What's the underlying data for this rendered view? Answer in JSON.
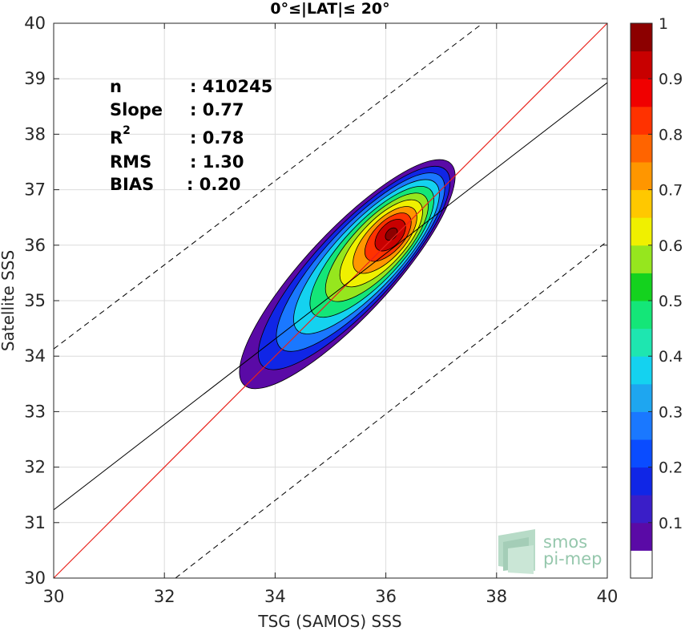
{
  "chart_data": {
    "type": "heatmap",
    "title": "0°≤|LAT|≤ 20°",
    "xlabel": "TSG (SAMOS) SSS",
    "ylabel": "Satellite SSS",
    "xlim": [
      30,
      40
    ],
    "ylim": [
      30,
      40
    ],
    "x_ticks": [
      30,
      32,
      34,
      36,
      38,
      40
    ],
    "y_ticks": [
      30,
      31,
      32,
      33,
      34,
      35,
      36,
      37,
      38,
      39,
      40
    ],
    "grid": true,
    "stats": [
      {
        "label": "n",
        "value": ": 410245"
      },
      {
        "label": "Slope",
        "value": ": 0.77"
      },
      {
        "label": "R",
        "sup": "2",
        "value": ": 0.78"
      },
      {
        "label": "RMS",
        "value": ": 1.30"
      },
      {
        "label": "BIAS",
        "value": ": 0.20"
      }
    ],
    "lines": {
      "one_to_one": {
        "slope": 1,
        "intercept": 0,
        "color": "#e8211a"
      },
      "fit": {
        "points": [
          [
            30,
            31.23
          ],
          [
            40,
            38.93
          ]
        ],
        "color": "#000000"
      },
      "upper_dashed": {
        "points": [
          [
            30,
            34.13
          ],
          [
            37.75,
            40
          ]
        ]
      },
      "lower_dashed": {
        "points": [
          [
            32.2,
            30
          ],
          [
            40,
            36.07
          ]
        ]
      }
    },
    "density_peak": {
      "x": 36.1,
      "y": 36.2,
      "value": 1.0
    },
    "contour_levels": [
      0.05,
      0.1,
      0.2,
      0.3,
      0.4,
      0.5,
      0.6,
      0.7,
      0.8,
      0.9
    ],
    "colorbar": {
      "ticks": [
        "0.1",
        "0.2",
        "0.3",
        "0.4",
        "0.5",
        "0.6",
        "0.7",
        "0.8",
        "0.9",
        "1"
      ],
      "range": [
        0,
        1
      ],
      "colors": [
        "#ffffff",
        "#5a0aa6",
        "#3a1ec8",
        "#1026e6",
        "#0a4cff",
        "#1a78ff",
        "#1ea6f0",
        "#14d2f0",
        "#1ee6b0",
        "#14e678",
        "#14d21e",
        "#96e61e",
        "#f0f000",
        "#ffc800",
        "#ff9600",
        "#ff6400",
        "#ff3200",
        "#f00000",
        "#c80000",
        "#8c0000"
      ]
    }
  },
  "watermark": {
    "line1": "smos",
    "line2": "pi-mep"
  }
}
